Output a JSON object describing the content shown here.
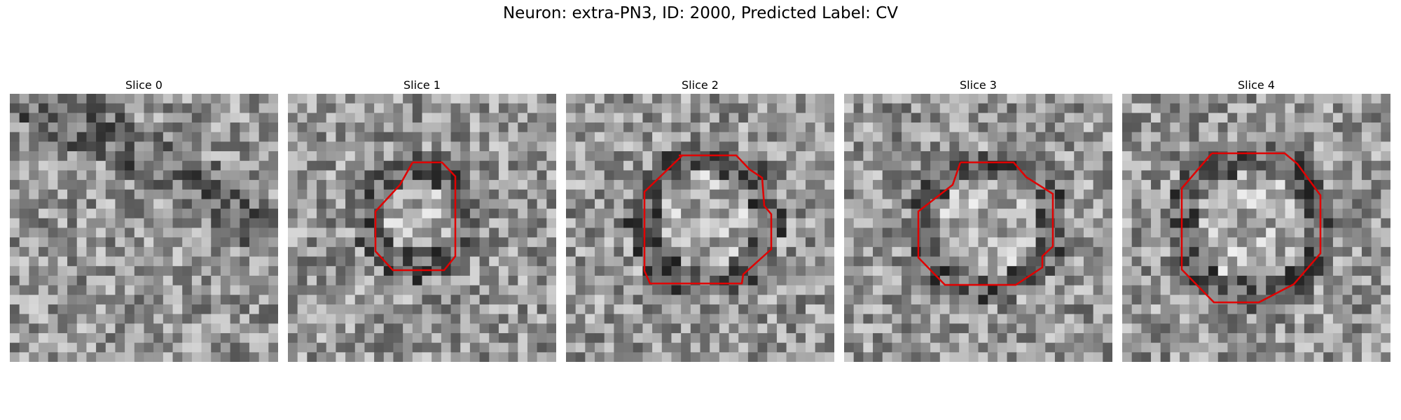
{
  "figure": {
    "title": "Neuron: extra-PN3, ID: 2000, Predicted Label: CV",
    "contour_color": "#e00000"
  },
  "panels": [
    {
      "title": "Slice 0",
      "has_contour": false
    },
    {
      "title": "Slice 1",
      "has_contour": true
    },
    {
      "title": "Slice 2",
      "has_contour": true
    },
    {
      "title": "Slice 3",
      "has_contour": true
    },
    {
      "title": "Slice 4",
      "has_contour": true
    }
  ]
}
